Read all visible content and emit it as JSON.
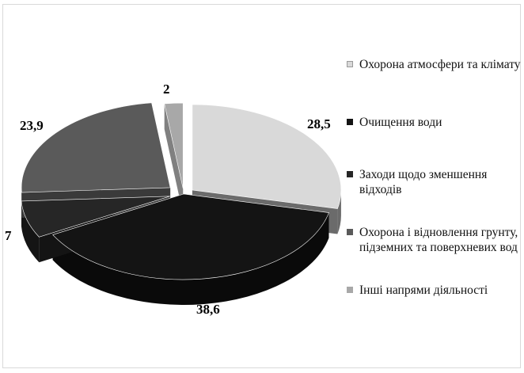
{
  "chart_data": {
    "type": "pie",
    "style": "3d-exploded",
    "categories": [
      "Охорона атмосфери та клімату",
      "Очищення води",
      "Заходи щодо зменшення відходів",
      "Охорона і відновлення грунту, підземних та поверхневих вод",
      "Інші напрями діяльності"
    ],
    "values": [
      28.5,
      38.6,
      7,
      23.9,
      2
    ],
    "value_labels": [
      "28,5",
      "38,6",
      "7",
      "23,9",
      "2"
    ],
    "colors": [
      "#d9d9d9",
      "#141414",
      "#262626",
      "#5a5a5a",
      "#a8a8a8"
    ],
    "side_colors": [
      "#6b6b6b",
      "#0a0a0a",
      "#141414",
      "#3a3a3a",
      "#808080"
    ],
    "legend_position": "right"
  }
}
